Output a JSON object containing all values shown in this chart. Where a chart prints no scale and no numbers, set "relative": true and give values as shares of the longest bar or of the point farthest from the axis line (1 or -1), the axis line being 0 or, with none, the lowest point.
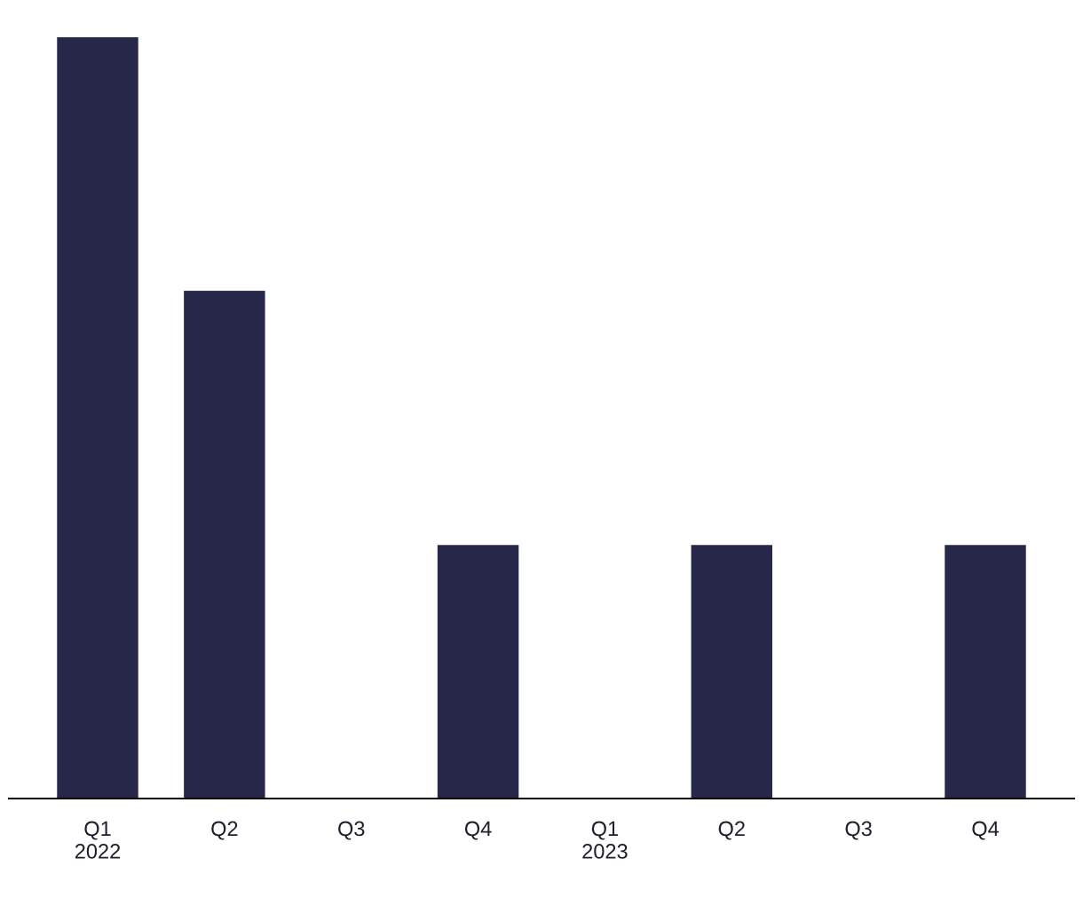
{
  "chart_data": {
    "type": "bar",
    "relative": true,
    "categories": [
      "Q1\n2022",
      "Q2",
      "Q3",
      "Q4",
      "Q1\n2023",
      "Q2",
      "Q3",
      "Q4"
    ],
    "values": [
      1,
      0.667,
      0,
      0.333,
      0,
      0.333,
      0,
      0.333
    ],
    "color": "#272749",
    "grid": false,
    "legend": false
  }
}
